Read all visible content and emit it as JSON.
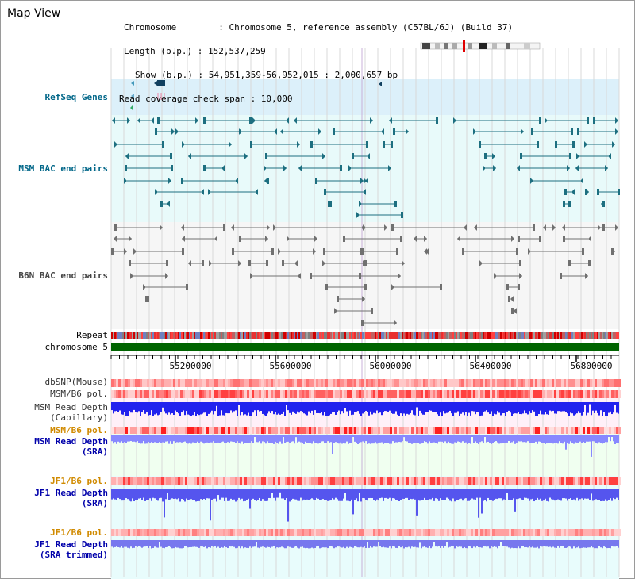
{
  "title": "Map View",
  "info": {
    "chromosome": "Chromosome        : Chromosome 5, reference assembly (C57BL/6J) (Build 37)",
    "length": "Length (b.p.) : 152,537,259",
    "show": "Show (b.p.) : 54,951,359-56,952,015 : 2,000,657 bp",
    "coverage": "Read coverage check span : 10,000"
  },
  "tracks": {
    "refseq": "RefSeq Genes",
    "msm_bac": "MSM BAC end pairs",
    "b6n_bac": "B6N BAC end pairs",
    "repeat": "Repeat",
    "chromosome": "chromosome 5",
    "dbsnp": "dbSNP(Mouse)",
    "msm_b6_pol": "MSM/B6 pol.",
    "msm_depth_cap_1": "MSM Read Depth",
    "msm_depth_cap_2": "(Capillary)",
    "msm_b6_pol2": "MSM/B6 pol.",
    "msm_depth_sra_1": "MSM Read Depth",
    "msm_depth_sra_2": "(SRA)",
    "jf1_pol": "JF1/B6 pol.",
    "jf1_depth_1": "JF1 Read Depth",
    "jf1_depth_2": "(SRA)",
    "jf1_pol2": "JF1/B6 pol.",
    "jf1_trim_1": "JF1 Read Depth",
    "jf1_trim_2": "(SRA trimmed)"
  },
  "axis": {
    "ticks": [
      "55200000",
      "55600000",
      "56000000",
      "56400000",
      "56800000"
    ]
  },
  "colors": {
    "refseq_bg": "#dcf0fa",
    "bac_bg": "#e8fafa",
    "b6n_bg": "#f6f6f6",
    "chromosome_bar": "#006400",
    "depth_blue": "#2222ee",
    "depth_light": "#8888ff",
    "pol_red": "#ff5050"
  }
}
